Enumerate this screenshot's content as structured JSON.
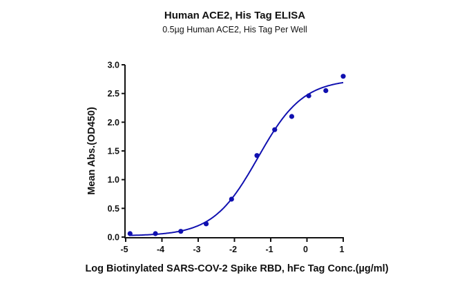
{
  "chart_data": {
    "type": "scatter",
    "title": "Human ACE2, His Tag ELISA",
    "subtitle": "0.5µg Human ACE2, His Tag Per Well",
    "xlabel": "Log Biotinylated SARS-COV-2 Spike RBD, hFc Tag Conc.(µg/ml)",
    "ylabel": "Mean Abs.(OD450)",
    "xlim": [
      -5,
      1
    ],
    "ylim": [
      0,
      3.0
    ],
    "xticks": [
      "-5",
      "-4",
      "-3",
      "-2",
      "-1",
      "0",
      "1"
    ],
    "yticks": [
      "0.0",
      "0.5",
      "1.0",
      "1.5",
      "2.0",
      "2.5",
      "3.0"
    ],
    "grid": false,
    "color": "#1010b0",
    "series": [
      {
        "name": "Mean Abs.",
        "x": [
          -4.88,
          -4.18,
          -3.48,
          -2.78,
          -2.08,
          -1.38,
          -0.89,
          -0.42,
          0.05,
          0.52,
          1.0
        ],
        "y": [
          0.06,
          0.06,
          0.1,
          0.23,
          0.66,
          1.42,
          1.87,
          2.1,
          2.46,
          2.55,
          2.8
        ]
      }
    ],
    "fit": {
      "model": "4PL",
      "bottom": 0.02,
      "top": 2.75,
      "logEC50": -1.35,
      "hill": 0.7,
      "xrange": [
        -4.9,
        1.0
      ]
    }
  }
}
